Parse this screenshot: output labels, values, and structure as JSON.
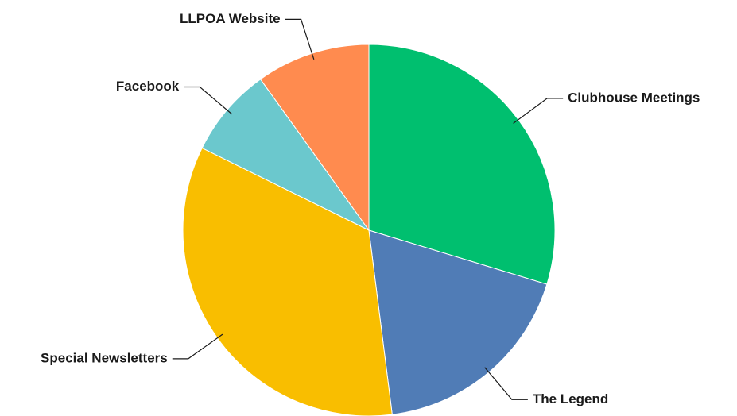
{
  "chart_data": {
    "type": "pie",
    "categories": [
      "Clubhouse Meetings",
      "The Legend",
      "Special Newsletters",
      "Facebook",
      "LLPOA Website"
    ],
    "values": [
      29.7,
      18.3,
      34.3,
      7.8,
      9.9
    ],
    "colors": [
      "#00bf6f",
      "#507cb6",
      "#f9be00",
      "#6bc8cd",
      "#ff8b4f"
    ]
  }
}
